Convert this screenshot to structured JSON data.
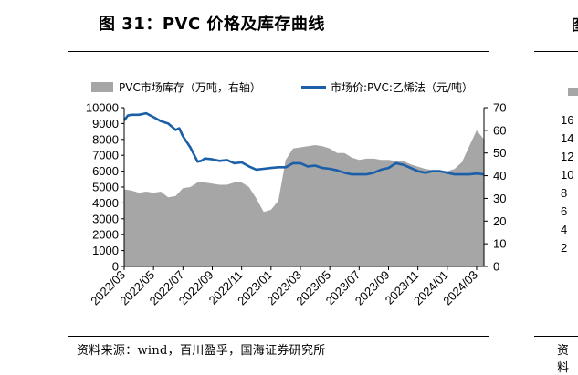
{
  "figure": {
    "title": "图 31：PVC 价格及库存曲线",
    "source": "资料来源：wind，百川盈孚，国海证券研究所",
    "right_panel_title_fragment": "图",
    "right_panel_source_fragment": "资料",
    "right_panel_ticks": [
      "16",
      "14",
      "12",
      "10",
      "8",
      "6",
      "4",
      "2"
    ]
  },
  "chart_data": {
    "type": "area+line",
    "legend": {
      "position": "top",
      "entries": [
        {
          "name": "PVC市场库存（万吨，右轴）",
          "kind": "area",
          "color": "#a6a6a6"
        },
        {
          "name": "市场价:PVC:乙烯法（元/吨）",
          "kind": "line",
          "color": "#1a5fa8"
        }
      ]
    },
    "x_tick_labels": [
      "2022/03",
      "2022/05",
      "2022/07",
      "2022/09",
      "2022/11",
      "2023/01",
      "2023/03",
      "2023/05",
      "2023/07",
      "2023/09",
      "2023/11",
      "2024/01",
      "2024/03"
    ],
    "x_range": [
      0,
      24.5
    ],
    "y_left": {
      "min": 0,
      "max": 10000,
      "ticks": [
        0,
        1000,
        2000,
        3000,
        4000,
        5000,
        6000,
        7000,
        8000,
        9000,
        10000
      ]
    },
    "y_right": {
      "min": 0,
      "max": 70,
      "ticks": [
        0,
        10,
        20,
        30,
        40,
        50,
        60,
        70
      ]
    },
    "grid": false,
    "series": [
      {
        "name": "PVC市场库存（万吨，右轴）",
        "type": "area",
        "axis": "right",
        "color": "#a6a6a6",
        "x": [
          0,
          0.5,
          1,
          1.5,
          2,
          2.5,
          3,
          3.5,
          4,
          4.5,
          5,
          5.5,
          6,
          6.5,
          7,
          7.5,
          8,
          8.5,
          9,
          9.5,
          10,
          10.5,
          11,
          11.5,
          12,
          12.5,
          13,
          13.5,
          14,
          14.5,
          15,
          15.5,
          16,
          16.5,
          17,
          17.5,
          18,
          18.5,
          19,
          19.5,
          20,
          20.5,
          21,
          21.5,
          22,
          22.5,
          23,
          23.5,
          24,
          24.5
        ],
        "values": [
          34,
          33.5,
          32.5,
          33,
          32.5,
          33,
          30.5,
          31,
          34.5,
          35,
          37,
          37,
          36.5,
          36,
          36,
          37,
          37,
          35,
          30,
          24,
          25,
          29,
          47,
          52,
          52.5,
          53,
          53.5,
          53,
          52,
          50,
          50,
          48,
          47,
          47.5,
          47.5,
          47,
          47,
          46.5,
          46.5,
          45,
          44,
          43,
          42.5,
          42,
          42,
          43,
          46,
          53,
          60,
          56
        ]
      },
      {
        "name": "市场价:PVC:乙烯法（元/吨）",
        "type": "line",
        "axis": "left",
        "color": "#1a5fa8",
        "x": [
          0,
          0.25,
          0.5,
          1,
          1.5,
          2,
          2.5,
          3,
          3.25,
          3.5,
          3.75,
          4,
          4.5,
          5,
          5.25,
          5.5,
          6,
          6.5,
          7,
          7.5,
          8,
          8.5,
          9,
          9.5,
          10,
          10.5,
          11,
          11.5,
          12,
          12.5,
          13,
          13.5,
          14,
          14.5,
          15,
          15.5,
          16,
          16.5,
          17,
          17.5,
          18,
          18.5,
          19,
          19.5,
          20,
          20.5,
          21,
          21.5,
          22,
          22.5,
          23,
          23.5,
          24,
          24.5
        ],
        "values": [
          9200,
          9500,
          9550,
          9550,
          9650,
          9400,
          9150,
          9000,
          8800,
          8600,
          8700,
          8200,
          7500,
          6600,
          6650,
          6800,
          6750,
          6650,
          6700,
          6500,
          6550,
          6300,
          6100,
          6150,
          6200,
          6250,
          6250,
          6500,
          6500,
          6300,
          6350,
          6200,
          6150,
          6050,
          5900,
          5800,
          5800,
          5800,
          5900,
          6100,
          6200,
          6500,
          6400,
          6200,
          6000,
          5900,
          6000,
          6000,
          5900,
          5800,
          5800,
          5800,
          5850,
          5800
        ]
      }
    ]
  }
}
